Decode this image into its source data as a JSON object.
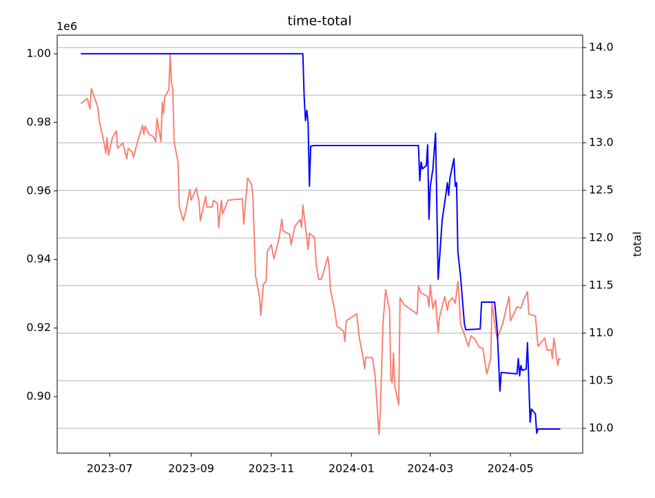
{
  "chart_data": {
    "type": "line",
    "title": "time-total",
    "y2_label": "total",
    "y_offset_label": "1e6",
    "xlim": [
      19499,
      19899
    ],
    "xticks": [
      {
        "value": 19539,
        "label": "2023-07"
      },
      {
        "value": 19601,
        "label": "2023-09"
      },
      {
        "value": 19662,
        "label": "2023-11"
      },
      {
        "value": 19723,
        "label": "2024-01"
      },
      {
        "value": 19783,
        "label": "2024-03"
      },
      {
        "value": 19844,
        "label": "2024-05"
      }
    ],
    "ylim": [
      883500,
      1005430
    ],
    "yticks": [
      {
        "value": 900000,
        "label": "0.90"
      },
      {
        "value": 920000,
        "label": "0.92"
      },
      {
        "value": 940000,
        "label": "0.94"
      },
      {
        "value": 960000,
        "label": "0.96"
      },
      {
        "value": 980000,
        "label": "0.98"
      },
      {
        "value": 1000000,
        "label": "1.00"
      }
    ],
    "y2lim": [
      9.739,
      14.13
    ],
    "y2ticks": [
      {
        "value": 10,
        "label": "10.0"
      },
      10.5,
      {
        "value": 11,
        "label": "11.0"
      },
      11.5,
      {
        "value": 12,
        "label": "12.0"
      },
      12.5,
      {
        "value": 13,
        "label": "13.0"
      },
      13.5,
      {
        "value": 14,
        "label": "14.0"
      }
    ],
    "grid": "y2",
    "series": [
      {
        "color": "#fa8072",
        "axis": "y",
        "x": [
          19517,
          19522,
          19524,
          19525,
          19530,
          19531,
          19535,
          19536,
          19537,
          19538,
          19541,
          19544,
          19545,
          19549,
          19552,
          19553,
          19556,
          19557,
          19561,
          19564,
          19565,
          19566,
          19569,
          19572,
          19574,
          19575,
          19578,
          19579,
          19580,
          19581,
          19584,
          19585,
          19586,
          19587,
          19588,
          19591,
          19592,
          19595,
          19597,
          19600,
          19601,
          19605,
          19607,
          19608,
          19612,
          19613,
          19617,
          19618,
          19621,
          19622,
          19624,
          19625,
          19629,
          19640,
          19641,
          19644,
          19647,
          19648,
          19650,
          19653,
          19654,
          19656,
          19658,
          19659,
          19662,
          19664,
          19668,
          19670,
          19671,
          19674,
          19676,
          19677,
          19680,
          19684,
          19685,
          19686,
          19689,
          19690,
          19691,
          19695,
          19696,
          19698,
          19700,
          19705,
          19706,
          19707,
          19710,
          19712,
          19717,
          19718,
          19719,
          19723,
          19727,
          19729,
          19732,
          19733,
          19734,
          19739,
          19741,
          19744,
          19745,
          19747,
          19749,
          19752,
          19753,
          19754,
          19755,
          19756,
          19759,
          19760,
          19763,
          19773,
          19774,
          19776,
          19781,
          19782,
          19783,
          19785,
          19787,
          19789,
          19790,
          19794,
          19796,
          19797,
          19800,
          19802,
          19804,
          19805,
          19806,
          19809,
          19812,
          19814,
          19817,
          19820,
          19823,
          19826,
          19829,
          19830,
          19833,
          19834,
          19838,
          19843,
          19844,
          19849,
          19852,
          19854,
          19857,
          19858,
          19863,
          19865,
          19869,
          19870,
          19872,
          19875,
          19876,
          19877,
          19880,
          19881,
          19882
        ],
        "values": [
          985500,
          986900,
          983900,
          989900,
          984300,
          980500,
          973400,
          971000,
          975500,
          970400,
          975500,
          977500,
          972400,
          974000,
          969400,
          972400,
          971400,
          969800,
          975500,
          979100,
          976500,
          978900,
          976500,
          975900,
          974400,
          981100,
          974400,
          985900,
          982500,
          987500,
          989500,
          1000000,
          991500,
          989900,
          974400,
          968400,
          955300,
          951300,
          954300,
          960400,
          957300,
          960800,
          956700,
          951300,
          958400,
          955300,
          955300,
          957300,
          956300,
          949300,
          957300,
          953300,
          957300,
          957700,
          950300,
          963800,
          961800,
          958400,
          935200,
          929200,
          923700,
          932800,
          933600,
          942300,
          944300,
          940200,
          946300,
          951700,
          948300,
          947700,
          947300,
          944300,
          949700,
          951700,
          949300,
          955900,
          946300,
          942900,
          947700,
          946300,
          939200,
          934200,
          934200,
          940800,
          938200,
          931200,
          925600,
          920500,
          919100,
          916100,
          922100,
          923100,
          924100,
          917100,
          911100,
          908100,
          911500,
          911300,
          906000,
          888900,
          896000,
          921100,
          931200,
          925200,
          905000,
          904000,
          912700,
          903000,
          897600,
          928800,
          926800,
          924100,
          932200,
          930200,
          929200,
          926200,
          932600,
          925600,
          928200,
          918700,
          923100,
          929200,
          925200,
          927600,
          928800,
          927200,
          933600,
          929200,
          921100,
          918100,
          914700,
          917700,
          916700,
          914500,
          914100,
          906600,
          911100,
          927200,
          918700,
          917100,
          921100,
          929200,
          922100,
          926200,
          925800,
          928200,
          930600,
          924100,
          923500,
          914700,
          916500,
          917100,
          913500,
          913700,
          911100,
          917100,
          909100,
          911100,
          910700
        ]
      },
      {
        "color": "#0000ff",
        "axis": "y2",
        "x": [
          19517,
          19686,
          19687,
          19688,
          19689,
          19690,
          19691,
          19692,
          19695,
          19774,
          19775,
          19776,
          19777,
          19780,
          19781,
          19782,
          19783,
          19785,
          19787,
          19789,
          19792,
          19795,
          19796,
          19797,
          19798,
          19801,
          19802,
          19803,
          19804,
          19806,
          19809,
          19810,
          19821,
          19822,
          19832,
          19834,
          19836,
          19837,
          19849,
          19850,
          19851,
          19852,
          19853,
          19856,
          19857,
          19859,
          19860,
          19863,
          19864,
          19865,
          19882
        ],
        "values": [
          13.935,
          13.935,
          13.486,
          13.232,
          13.341,
          13.21,
          12.543,
          12.964,
          12.971,
          12.971,
          12.601,
          12.797,
          12.725,
          12.761,
          12.978,
          12.196,
          12.543,
          12.725,
          13.101,
          11.565,
          12.181,
          12.471,
          12.58,
          12.449,
          12.63,
          12.833,
          12.543,
          12.58,
          11.855,
          11.601,
          11.094,
          11.036,
          11.043,
          11.326,
          11.326,
          11.022,
          10.391,
          10.587,
          10.572,
          10.732,
          10.551,
          10.659,
          10.609,
          10.623,
          10.899,
          10.065,
          10.203,
          10.152,
          9.949,
          9.993,
          9.993
        ]
      }
    ]
  }
}
